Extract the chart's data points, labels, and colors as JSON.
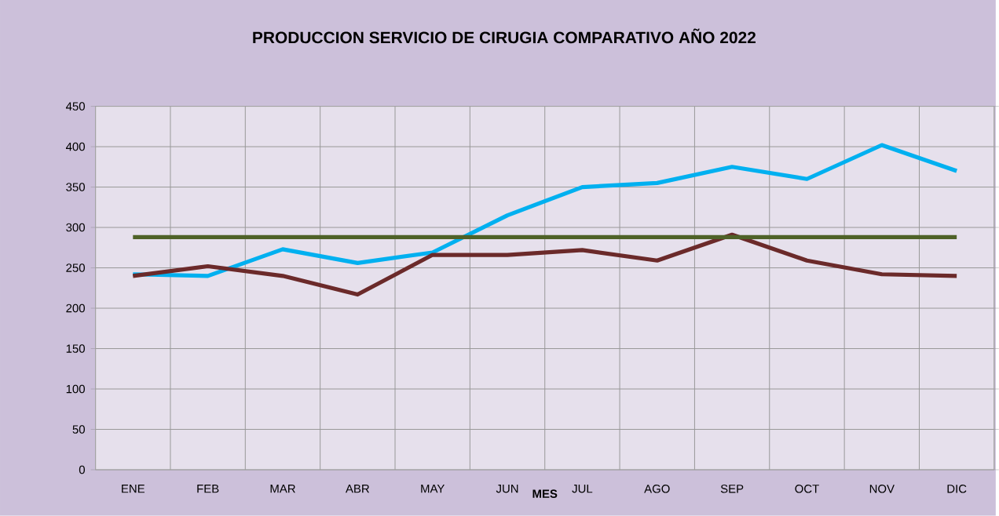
{
  "chart_data": {
    "type": "line",
    "title": "PRODUCCION SERVICIO DE CIRUGIA COMPARATIVO AÑO 2022",
    "xlabel": "MES",
    "categories": [
      "ENE",
      "FEB",
      "MAR",
      "ABR",
      "MAY",
      "JUN",
      "JUL",
      "AGO",
      "SEP",
      "OCT",
      "NOV",
      "DIC"
    ],
    "series": [
      {
        "color": "#00b0f0",
        "values": [
          242,
          240,
          273,
          256,
          269,
          315,
          350,
          355,
          375,
          360,
          402,
          370
        ]
      },
      {
        "color": "#6b2a2a",
        "values": [
          240,
          252,
          240,
          217,
          266,
          266,
          272,
          259,
          291,
          259,
          242,
          240
        ]
      },
      {
        "color": "#4f6228",
        "values": [
          288,
          288,
          288,
          288,
          288,
          288,
          288,
          288,
          288,
          288,
          288,
          288
        ]
      }
    ],
    "ylim": [
      0,
      450
    ],
    "yticks": [
      0,
      50,
      100,
      150,
      200,
      250,
      300,
      350,
      400,
      450
    ],
    "grid": true,
    "marker": "none",
    "line_style": "solid"
  }
}
